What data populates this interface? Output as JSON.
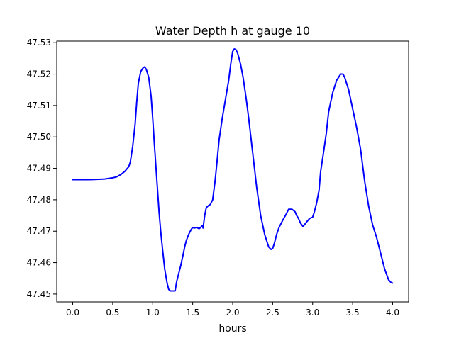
{
  "chart_data": {
    "type": "line",
    "title": "Water Depth h at gauge 10",
    "xlabel": "hours",
    "ylabel": "",
    "xlim": [
      -0.2,
      4.2
    ],
    "ylim": [
      47.4475,
      47.5305
    ],
    "xticks": [
      0.0,
      0.5,
      1.0,
      1.5,
      2.0,
      2.5,
      3.0,
      3.5,
      4.0
    ],
    "xtick_labels": [
      "0.0",
      "0.5",
      "1.0",
      "1.5",
      "2.0",
      "2.5",
      "3.0",
      "3.5",
      "4.0"
    ],
    "yticks": [
      47.45,
      47.46,
      47.47,
      47.48,
      47.49,
      47.5,
      47.51,
      47.52,
      47.53
    ],
    "ytick_labels": [
      "47.45",
      "47.46",
      "47.47",
      "47.48",
      "47.49",
      "47.50",
      "47.51",
      "47.52",
      "47.53"
    ],
    "grid": false,
    "line_color": "#0000ff",
    "series": [
      {
        "x": [
          0.0,
          0.1,
          0.2,
          0.3,
          0.4,
          0.5,
          0.55,
          0.6,
          0.65,
          0.7,
          0.72,
          0.75,
          0.78,
          0.8,
          0.82,
          0.85,
          0.88,
          0.9,
          0.92,
          0.95,
          0.98,
          1.0,
          1.02,
          1.05,
          1.08,
          1.1,
          1.12,
          1.15,
          1.18,
          1.2,
          1.22,
          1.25,
          1.28,
          1.3,
          1.32,
          1.35,
          1.38,
          1.4,
          1.42,
          1.45,
          1.48,
          1.5,
          1.52,
          1.55,
          1.58,
          1.6,
          1.62,
          1.63,
          1.65,
          1.67,
          1.7,
          1.72,
          1.75,
          1.78,
          1.8,
          1.83,
          1.87,
          1.9,
          1.95,
          1.98,
          2.0,
          2.02,
          2.04,
          2.06,
          2.08,
          2.1,
          2.13,
          2.17,
          2.2,
          2.25,
          2.3,
          2.35,
          2.4,
          2.45,
          2.48,
          2.5,
          2.52,
          2.55,
          2.58,
          2.62,
          2.66,
          2.7,
          2.74,
          2.78,
          2.8,
          2.82,
          2.85,
          2.88,
          2.92,
          2.96,
          3.0,
          3.02,
          3.05,
          3.08,
          3.1,
          3.13,
          3.17,
          3.2,
          3.25,
          3.3,
          3.35,
          3.38,
          3.4,
          3.45,
          3.5,
          3.55,
          3.6,
          3.62,
          3.65,
          3.7,
          3.75,
          3.8,
          3.85,
          3.9,
          3.95,
          3.98,
          4.0
        ],
        "y": [
          47.4864,
          47.4864,
          47.4864,
          47.4865,
          47.4866,
          47.487,
          47.4873,
          47.488,
          47.489,
          47.4905,
          47.492,
          47.497,
          47.504,
          47.511,
          47.517,
          47.5208,
          47.522,
          47.5223,
          47.5215,
          47.519,
          47.513,
          47.506,
          47.498,
          47.487,
          47.476,
          47.47,
          47.465,
          47.458,
          47.4535,
          47.4515,
          47.451,
          47.451,
          47.451,
          47.454,
          47.456,
          47.459,
          47.4625,
          47.465,
          47.467,
          47.469,
          47.4705,
          47.4712,
          47.471,
          47.4712,
          47.4708,
          47.4712,
          47.4718,
          47.471,
          47.475,
          47.4775,
          47.4782,
          47.4785,
          47.48,
          47.486,
          47.491,
          47.499,
          47.506,
          47.5105,
          47.518,
          47.524,
          47.5272,
          47.528,
          47.5278,
          47.5268,
          47.525,
          47.523,
          47.519,
          47.512,
          47.506,
          47.495,
          47.484,
          47.475,
          47.469,
          47.465,
          47.4642,
          47.4645,
          47.466,
          47.469,
          47.4712,
          47.4732,
          47.475,
          47.477,
          47.477,
          47.4762,
          47.475,
          47.4742,
          47.4725,
          47.4715,
          47.4728,
          47.474,
          47.4745,
          47.476,
          47.479,
          47.483,
          47.489,
          47.494,
          47.501,
          47.508,
          47.514,
          47.518,
          47.52,
          47.52,
          47.519,
          47.515,
          47.509,
          47.503,
          47.496,
          47.492,
          47.486,
          47.478,
          47.472,
          47.468,
          47.463,
          47.458,
          47.4545,
          47.4537,
          47.4535
        ]
      }
    ]
  }
}
